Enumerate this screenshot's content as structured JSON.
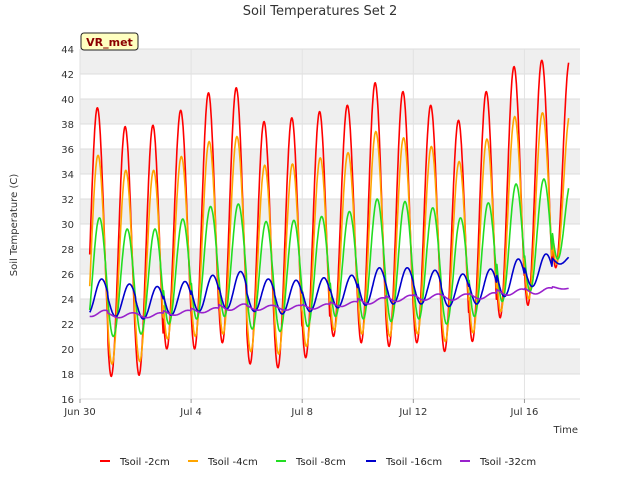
{
  "chart_data": {
    "type": "line",
    "title": "Soil Temperatures Set 2",
    "xlabel": "Time",
    "ylabel": "Soil Temperature (C)",
    "badge": "VR_met",
    "x_tick_labels": [
      "Jun 30",
      "Jul 4",
      "Jul 8",
      "Jul 12",
      "Jul 16"
    ],
    "x_tick_days": [
      0,
      4,
      8,
      12,
      16
    ],
    "xlim_days": [
      0,
      18.0
    ],
    "y_ticks": [
      16,
      18,
      20,
      22,
      24,
      26,
      28,
      30,
      32,
      34,
      36,
      38,
      40,
      42,
      44
    ],
    "ylim": [
      16,
      44
    ],
    "grid": true,
    "legend_position": "bottom",
    "series_colors": [
      "#ff0000",
      "#ffa500",
      "#22dd22",
      "#0000cc",
      "#9922cc"
    ],
    "series": [
      {
        "name": "Tsoil -2cm",
        "daily_min": [
          19,
          17.8,
          17.9,
          20,
          20,
          20.5,
          18.8,
          18.5,
          19.3,
          21,
          20.5,
          20.2,
          20.5,
          19.8,
          20.6,
          22.5,
          23.5,
          26.5
        ],
        "daily_max": [
          39.3,
          37.8,
          37.9,
          39.1,
          40.5,
          40.9,
          38.2,
          38.5,
          39,
          39.5,
          41.3,
          40.6,
          39.5,
          38.3,
          40.6,
          42.6,
          43.1,
          43.1
        ]
      },
      {
        "name": "Tsoil -4cm",
        "daily_min": [
          19.5,
          18.8,
          19,
          20.8,
          21,
          21.2,
          19.8,
          19.6,
          20.2,
          21.5,
          21.2,
          21,
          21.2,
          20.6,
          21.3,
          23,
          24,
          26.8
        ],
        "daily_max": [
          35.5,
          34.3,
          34.3,
          35.4,
          36.6,
          37,
          34.7,
          34.8,
          35.3,
          35.7,
          37.4,
          36.9,
          36.2,
          35,
          36.8,
          38.6,
          38.9,
          38.9
        ]
      },
      {
        "name": "Tsoil -8cm",
        "daily_min": [
          21.2,
          21,
          21.2,
          22,
          22.4,
          22.6,
          21.6,
          21.4,
          21.8,
          22.6,
          22.4,
          22.2,
          22.4,
          22,
          22.6,
          23.8,
          24.6,
          27.2
        ],
        "daily_max": [
          30.5,
          29.6,
          29.6,
          30.4,
          31.4,
          31.6,
          30.2,
          30.3,
          30.6,
          31,
          32,
          31.8,
          31.3,
          30.5,
          31.7,
          33.2,
          33.6,
          33.6
        ]
      },
      {
        "name": "Tsoil -16cm",
        "daily_min": [
          22.8,
          22.6,
          22.4,
          22.7,
          23,
          23.2,
          23,
          22.8,
          23,
          23.3,
          23.5,
          23.6,
          23.6,
          23.4,
          23.6,
          24.2,
          25,
          26.8
        ],
        "daily_max": [
          25.6,
          25.2,
          25,
          25.4,
          25.9,
          26.2,
          25.6,
          25.5,
          25.7,
          25.9,
          26.5,
          26.5,
          26.3,
          26,
          26.4,
          27.2,
          27.6,
          27.6
        ]
      },
      {
        "name": "Tsoil -32cm",
        "daily_min": [
          22.6,
          22.5,
          22.5,
          22.7,
          22.9,
          23.1,
          23.1,
          23.1,
          23.2,
          23.4,
          23.6,
          23.8,
          23.9,
          23.9,
          24,
          24.3,
          24.4,
          24.8
        ],
        "daily_max": [
          23.1,
          22.9,
          22.9,
          23.1,
          23.3,
          23.6,
          23.5,
          23.5,
          23.6,
          23.8,
          24.1,
          24.3,
          24.4,
          24.4,
          24.5,
          24.8,
          24.9,
          25
        ]
      }
    ]
  }
}
